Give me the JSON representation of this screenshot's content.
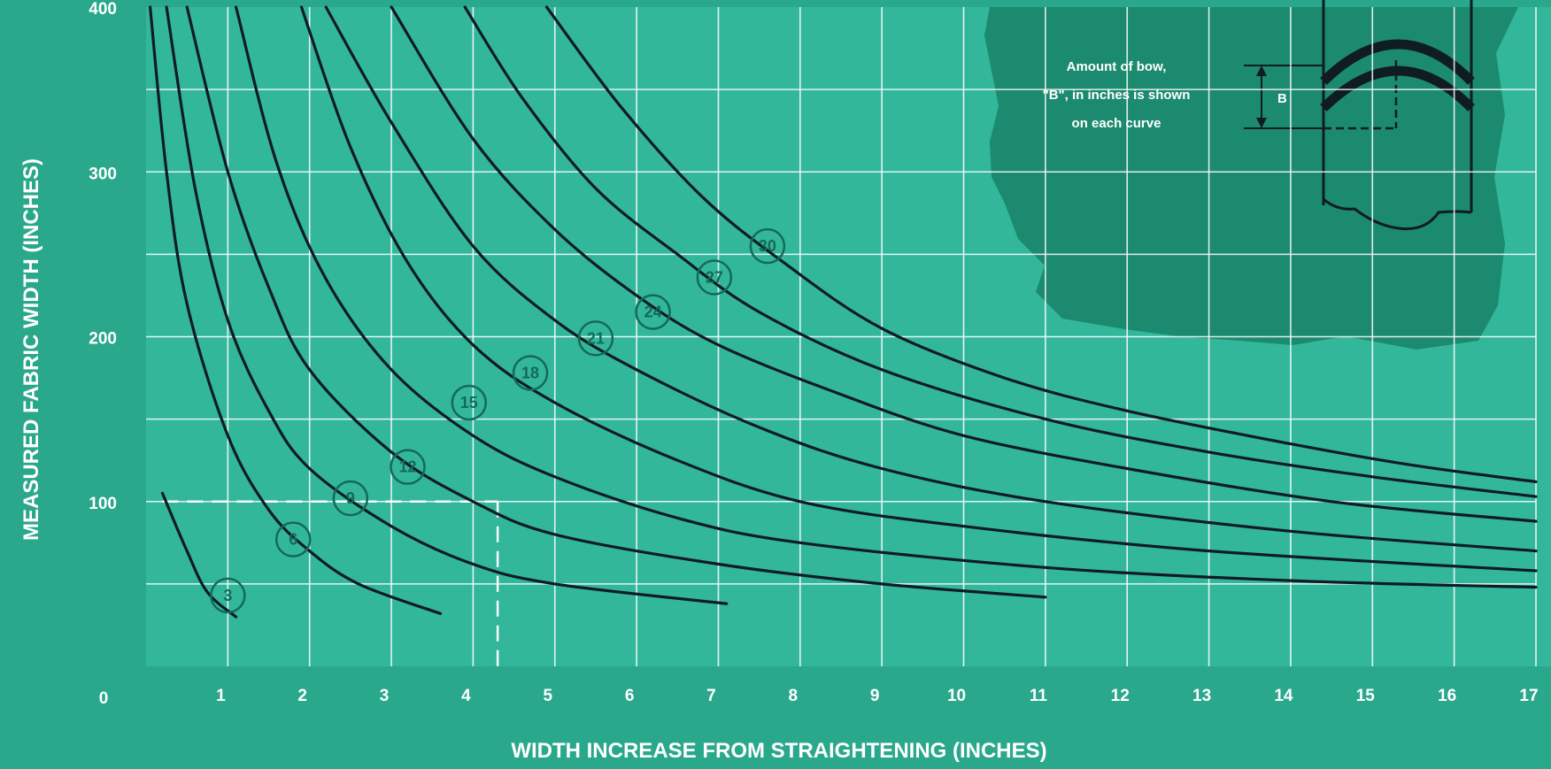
{
  "chart_data": {
    "type": "line",
    "title": "",
    "xlabel": "WIDTH INCREASE FROM STRAIGHTENING (INCHES)",
    "ylabel": "MEASURED FABRIC WIDTH (INCHES)",
    "xlim": [
      0,
      17
    ],
    "ylim": [
      0,
      400
    ],
    "x_ticks": [
      "1",
      "2",
      "3",
      "4",
      "5",
      "6",
      "7",
      "8",
      "9",
      "10",
      "11",
      "12",
      "13",
      "14",
      "15",
      "16",
      "17"
    ],
    "x_origin_label": "0",
    "y_ticks": [
      "100",
      "200",
      "300",
      "400"
    ],
    "series": [
      {
        "name": "3",
        "bow": 3,
        "x": [
          0.2,
          0.5,
          0.75,
          1.1
        ],
        "y": [
          105,
          70,
          45,
          30
        ]
      },
      {
        "name": "6",
        "bow": 6,
        "x": [
          0.05,
          0.25,
          0.5,
          1.0,
          1.5,
          2.0,
          2.6,
          3.6
        ],
        "y": [
          400,
          300,
          220,
          140,
          95,
          70,
          50,
          32
        ]
      },
      {
        "name": "9",
        "bow": 9,
        "x": [
          0.25,
          0.6,
          1.0,
          1.5,
          2.0,
          3.0,
          4.0,
          5.0,
          7.1
        ],
        "y": [
          400,
          290,
          210,
          155,
          120,
          85,
          62,
          50,
          38
        ]
      },
      {
        "name": "12",
        "bow": 12,
        "x": [
          0.5,
          1.0,
          1.5,
          2.0,
          3.0,
          4.0,
          5.0,
          7.0,
          9.0,
          11.0
        ],
        "y": [
          400,
          300,
          230,
          180,
          130,
          100,
          80,
          62,
          50,
          42
        ]
      },
      {
        "name": "15",
        "bow": 15,
        "x": [
          1.1,
          1.6,
          2.2,
          3.0,
          4.0,
          5.0,
          6.5,
          8.0,
          11.0,
          14.0,
          17.0
        ],
        "y": [
          400,
          305,
          235,
          180,
          140,
          115,
          90,
          75,
          60,
          52,
          48
        ]
      },
      {
        "name": "18",
        "bow": 18,
        "x": [
          1.9,
          2.5,
          3.2,
          4.0,
          5.0,
          6.5,
          8.0,
          10.0,
          13.0,
          17.0
        ],
        "y": [
          400,
          315,
          245,
          195,
          160,
          125,
          100,
          85,
          70,
          58
        ]
      },
      {
        "name": "21",
        "bow": 21,
        "x": [
          2.2,
          3.0,
          4.0,
          5.0,
          6.0,
          7.5,
          9.0,
          11.0,
          14.0,
          17.0
        ],
        "y": [
          400,
          330,
          255,
          210,
          180,
          145,
          120,
          100,
          82,
          70
        ]
      },
      {
        "name": "24",
        "bow": 24,
        "x": [
          3.0,
          4.0,
          5.0,
          6.0,
          7.0,
          8.5,
          10.0,
          12.0,
          14.5,
          17.0
        ],
        "y": [
          400,
          320,
          265,
          225,
          195,
          165,
          140,
          120,
          100,
          88
        ]
      },
      {
        "name": "27",
        "bow": 27,
        "x": [
          3.9,
          4.6,
          5.5,
          6.5,
          7.5,
          9.0,
          11.0,
          13.0,
          15.0,
          17.0
        ],
        "y": [
          400,
          345,
          290,
          250,
          215,
          180,
          150,
          130,
          115,
          103
        ]
      },
      {
        "name": "30",
        "bow": 30,
        "x": [
          4.9,
          5.8,
          6.8,
          7.8,
          9.0,
          10.5,
          12.0,
          14.0,
          15.5,
          17.0
        ],
        "y": [
          400,
          340,
          285,
          245,
          205,
          175,
          155,
          135,
          122,
          112
        ]
      }
    ],
    "curve_labels": [
      {
        "text": "3",
        "x": 1.0,
        "y": 43
      },
      {
        "text": "6",
        "x": 1.8,
        "y": 77
      },
      {
        "text": "9",
        "x": 2.5,
        "y": 102
      },
      {
        "text": "12",
        "x": 3.2,
        "y": 121
      },
      {
        "text": "15",
        "x": 3.95,
        "y": 160
      },
      {
        "text": "18",
        "x": 4.7,
        "y": 178
      },
      {
        "text": "21",
        "x": 5.5,
        "y": 199
      },
      {
        "text": "24",
        "x": 6.2,
        "y": 215
      },
      {
        "text": "27",
        "x": 6.95,
        "y": 236
      },
      {
        "text": "30",
        "x": 7.6,
        "y": 255
      }
    ],
    "example_guide": {
      "x": 4.3,
      "y": 100
    },
    "grid": true,
    "legend": "none"
  },
  "inset": {
    "note_lines": [
      "Amount of bow,",
      "\"B\", in inches is shown",
      "on each curve"
    ],
    "dimension_label": "B"
  },
  "colors": {
    "background": "#2aa88c",
    "plot_area": "#33b79b",
    "curves": "#0f1c22",
    "grid": "#ffffff",
    "label_circles": "#146a57",
    "inset_panel": "#1c8a6e"
  }
}
